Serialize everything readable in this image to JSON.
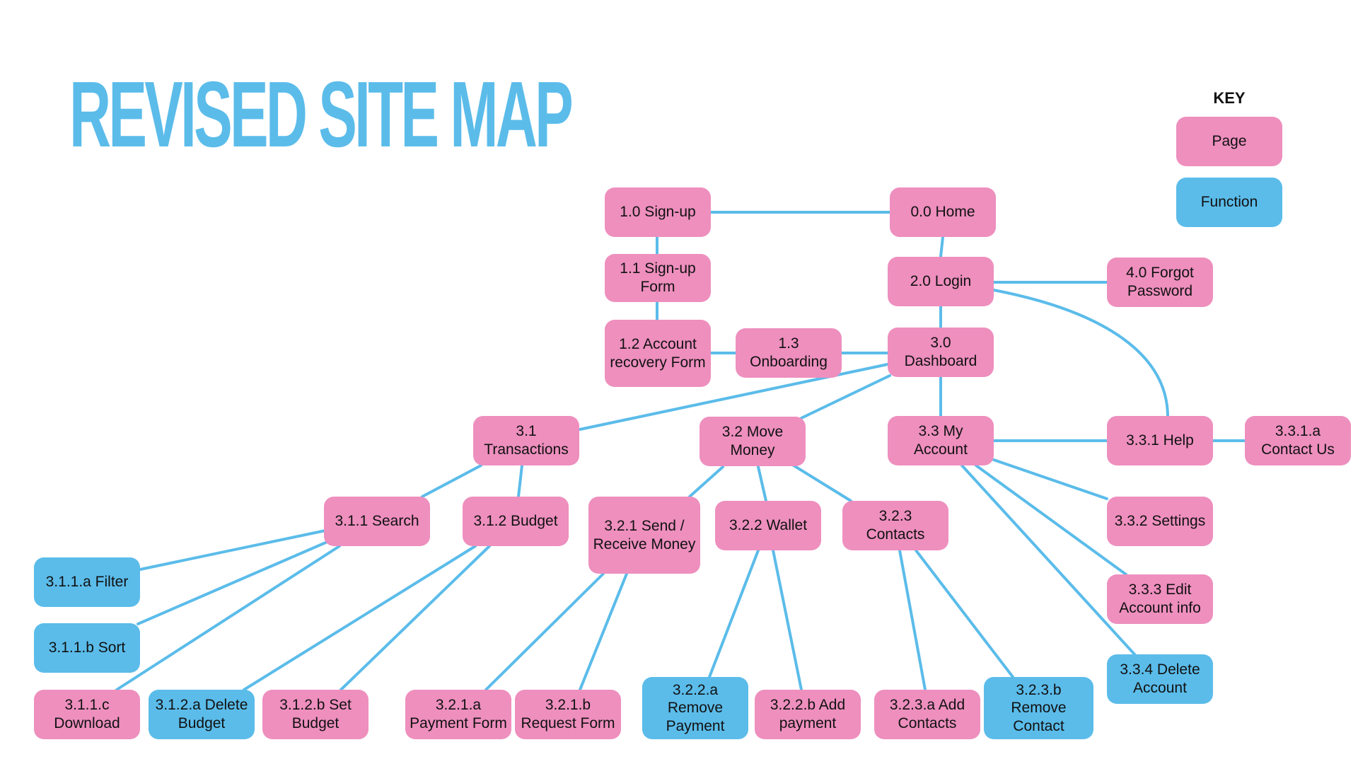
{
  "title": "REVISED SITE MAP",
  "key": {
    "title": "KEY",
    "items": [
      {
        "label": "Page",
        "type": "page"
      },
      {
        "label": "Function",
        "type": "function"
      }
    ]
  },
  "colors": {
    "page": "#ee8fbe",
    "function": "#5bbcea",
    "edge": "#5bbcea",
    "title": "#5bbcea"
  },
  "nodes": [
    {
      "id": "n00",
      "label": "0.0 Home",
      "type": "page"
    },
    {
      "id": "n10",
      "label": "1.0 Sign-up",
      "type": "page"
    },
    {
      "id": "n11",
      "label": "1.1 Sign-up\nForm",
      "type": "page"
    },
    {
      "id": "n12",
      "label": "1.2 Account\nrecovery Form",
      "type": "page"
    },
    {
      "id": "n13",
      "label": "1.3\nOnboarding",
      "type": "page"
    },
    {
      "id": "n20",
      "label": "2.0 Login",
      "type": "page"
    },
    {
      "id": "n40",
      "label": "4.0 Forgot\nPassword",
      "type": "page"
    },
    {
      "id": "n30",
      "label": "3.0\nDashboard",
      "type": "page"
    },
    {
      "id": "n31",
      "label": "3.1\nTransactions",
      "type": "page"
    },
    {
      "id": "n32",
      "label": "3.2 Move\nMoney",
      "type": "page"
    },
    {
      "id": "n33",
      "label": "3.3 My\nAccount",
      "type": "page"
    },
    {
      "id": "n331",
      "label": "3.3.1 Help",
      "type": "page"
    },
    {
      "id": "n331a",
      "label": "3.3.1.a\nContact Us",
      "type": "page"
    },
    {
      "id": "n311",
      "label": "3.1.1 Search",
      "type": "page"
    },
    {
      "id": "n312",
      "label": "3.1.2 Budget",
      "type": "page"
    },
    {
      "id": "n321",
      "label": "3.2.1  Send /\nReceive Money",
      "type": "page"
    },
    {
      "id": "n322",
      "label": "3.2.2 Wallet",
      "type": "page"
    },
    {
      "id": "n323",
      "label": "3.2.3\nContacts",
      "type": "page"
    },
    {
      "id": "n332",
      "label": "3.3.2 Settings",
      "type": "page"
    },
    {
      "id": "n333",
      "label": "3.3.3 Edit\nAccount info",
      "type": "page"
    },
    {
      "id": "n334",
      "label": "3.3.4 Delete\nAccount",
      "type": "function"
    },
    {
      "id": "n311a",
      "label": "3.1.1.a Filter",
      "type": "function"
    },
    {
      "id": "n311b",
      "label": "3.1.1.b Sort",
      "type": "function"
    },
    {
      "id": "n311c",
      "label": "3.1.1.c\nDownload",
      "type": "page"
    },
    {
      "id": "n312a",
      "label": "3.1.2.a Delete\nBudget",
      "type": "function"
    },
    {
      "id": "n312b",
      "label": "3.1.2.b Set\nBudget",
      "type": "page"
    },
    {
      "id": "n321a",
      "label": "3.2.1.a\nPayment Form",
      "type": "page"
    },
    {
      "id": "n321b",
      "label": "3.2.1.b\nRequest Form",
      "type": "page"
    },
    {
      "id": "n322a",
      "label": "3.2.2.a\nRemove\nPayment",
      "type": "function"
    },
    {
      "id": "n322b",
      "label": "3.2.2.b Add\npayment",
      "type": "page"
    },
    {
      "id": "n323a",
      "label": "3.2.3.a Add\nContacts",
      "type": "page"
    },
    {
      "id": "n323b",
      "label": "3.2.3.b\nRemove\nContact",
      "type": "function"
    }
  ],
  "edges": [
    [
      "n10",
      "n00"
    ],
    [
      "n10",
      "n11"
    ],
    [
      "n11",
      "n12"
    ],
    [
      "n12",
      "n13"
    ],
    [
      "n13",
      "n30"
    ],
    [
      "n00",
      "n20"
    ],
    [
      "n20",
      "n40"
    ],
    [
      "n20",
      "n30"
    ],
    [
      "n20",
      "n331"
    ],
    [
      "n30",
      "n31"
    ],
    [
      "n30",
      "n32"
    ],
    [
      "n30",
      "n33"
    ],
    [
      "n33",
      "n331"
    ],
    [
      "n331",
      "n331a"
    ],
    [
      "n33",
      "n332"
    ],
    [
      "n33",
      "n333"
    ],
    [
      "n33",
      "n334"
    ],
    [
      "n31",
      "n311"
    ],
    [
      "n31",
      "n312"
    ],
    [
      "n32",
      "n321"
    ],
    [
      "n32",
      "n322"
    ],
    [
      "n32",
      "n323"
    ],
    [
      "n311",
      "n311a"
    ],
    [
      "n311",
      "n311b"
    ],
    [
      "n311",
      "n311c"
    ],
    [
      "n312",
      "n312a"
    ],
    [
      "n312",
      "n312b"
    ],
    [
      "n321",
      "n321a"
    ],
    [
      "n321",
      "n321b"
    ],
    [
      "n322",
      "n322a"
    ],
    [
      "n322",
      "n322b"
    ],
    [
      "n323",
      "n323a"
    ],
    [
      "n323",
      "n323b"
    ]
  ]
}
